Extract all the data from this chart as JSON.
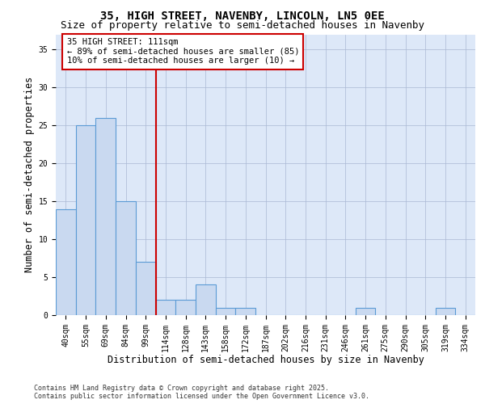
{
  "title_line1": "35, HIGH STREET, NAVENBY, LINCOLN, LN5 0EE",
  "title_line2": "Size of property relative to semi-detached houses in Navenby",
  "xlabel": "Distribution of semi-detached houses by size in Navenby",
  "ylabel": "Number of semi-detached properties",
  "bins": [
    "40sqm",
    "55sqm",
    "69sqm",
    "84sqm",
    "99sqm",
    "114sqm",
    "128sqm",
    "143sqm",
    "158sqm",
    "172sqm",
    "187sqm",
    "202sqm",
    "216sqm",
    "231sqm",
    "246sqm",
    "261sqm",
    "275sqm",
    "290sqm",
    "305sqm",
    "319sqm",
    "334sqm"
  ],
  "values": [
    14,
    25,
    26,
    15,
    7,
    2,
    2,
    4,
    1,
    1,
    0,
    0,
    0,
    0,
    0,
    1,
    0,
    0,
    0,
    1,
    0
  ],
  "bar_color": "#c9d9f0",
  "bar_edge_color": "#5b9bd5",
  "bar_linewidth": 0.8,
  "vline_color": "#cc0000",
  "annotation_text": "35 HIGH STREET: 111sqm\n← 89% of semi-detached houses are smaller (85)\n10% of semi-detached houses are larger (10) →",
  "annotation_box_color": "#cc0000",
  "ylim": [
    0,
    37
  ],
  "yticks": [
    0,
    5,
    10,
    15,
    20,
    25,
    30,
    35
  ],
  "background_color": "#dde8f8",
  "footnote": "Contains HM Land Registry data © Crown copyright and database right 2025.\nContains public sector information licensed under the Open Government Licence v3.0.",
  "title_fontsize": 10,
  "subtitle_fontsize": 9,
  "axis_label_fontsize": 8.5,
  "tick_fontsize": 7,
  "annotation_fontsize": 7.5,
  "footnote_fontsize": 6
}
